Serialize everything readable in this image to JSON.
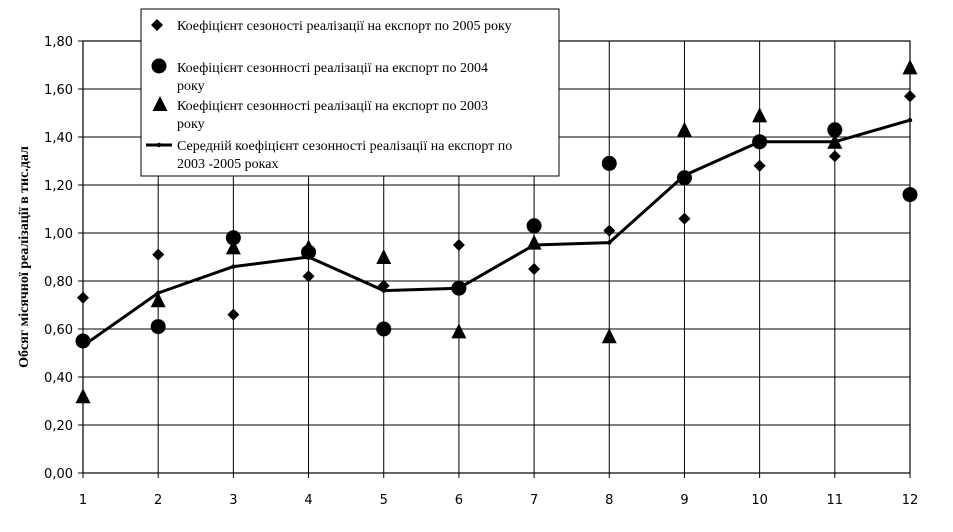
{
  "chart_data": {
    "type": "line",
    "ylabel": "Обсяг місячної реалізації в тис.дал",
    "xlabel": "",
    "x": [
      1,
      2,
      3,
      4,
      5,
      6,
      7,
      8,
      9,
      10,
      11,
      12
    ],
    "x_tick_labels": [
      "1",
      "2",
      "3",
      "4",
      "5",
      "6",
      "7",
      "8",
      "9",
      "10",
      "11",
      "12"
    ],
    "y_tick_labels": [
      "0,00",
      "0,20",
      "0,40",
      "0,60",
      "0,80",
      "1,00",
      "1,20",
      "1,40",
      "1,60",
      "1,80"
    ],
    "ylim": [
      0,
      1.8
    ],
    "grid": true,
    "legend_position": "top",
    "series": [
      {
        "name": "Коефіцієнт сезоності реалізації на експорт по 2005 року",
        "marker": "diamond",
        "line": false,
        "values": [
          0.73,
          0.91,
          0.66,
          0.82,
          0.78,
          0.95,
          0.85,
          1.01,
          1.06,
          1.28,
          1.32,
          1.57
        ]
      },
      {
        "name_lines": [
          "Коефіцієнт сезонності реалізації на експорт по 2004",
          "року"
        ],
        "marker": "circle",
        "line": false,
        "values": [
          0.55,
          0.61,
          0.98,
          0.92,
          0.6,
          0.77,
          1.03,
          1.29,
          1.23,
          1.38,
          1.43,
          1.16
        ]
      },
      {
        "name_lines": [
          "Коефіцієнт сезонності реалізації на експорт по 2003",
          "року"
        ],
        "marker": "triangle",
        "line": false,
        "values": [
          0.32,
          0.72,
          0.94,
          0.94,
          0.9,
          0.59,
          0.96,
          0.57,
          1.43,
          1.49,
          1.38,
          1.69
        ]
      },
      {
        "name_lines": [
          "Середній коефіцієнт сезонності реалізації на експорт по",
          "2003 -2005 роках"
        ],
        "marker": "dot",
        "line": true,
        "values": [
          0.53,
          0.75,
          0.86,
          0.9,
          0.76,
          0.77,
          0.95,
          0.96,
          1.24,
          1.38,
          1.38,
          1.47
        ]
      }
    ]
  }
}
